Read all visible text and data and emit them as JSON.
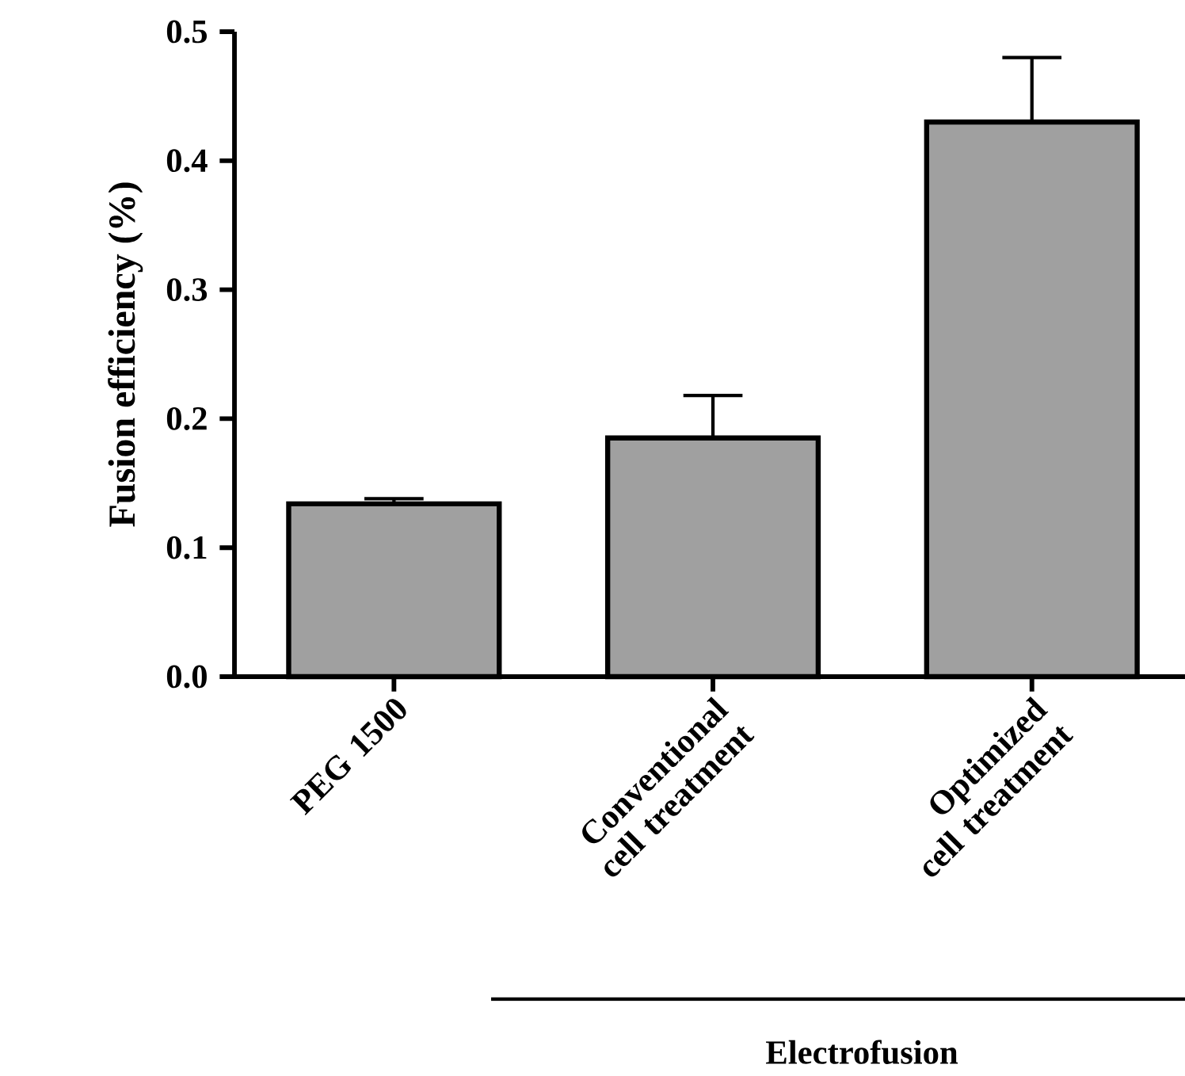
{
  "chart_data": {
    "type": "bar",
    "ylabel": "Fusion efficiency (%)",
    "categories": [
      "PEG 1500",
      "Conventional cell treatment",
      "Optimized cell treatment"
    ],
    "values": [
      0.134,
      0.185,
      0.43
    ],
    "errors": [
      [
        0.134,
        0.138
      ],
      [
        0.185,
        0.218
      ],
      [
        0.43,
        0.48
      ]
    ],
    "color": "#a0a0a0",
    "ylim": [
      0,
      0.5
    ],
    "yticks": [
      {
        "value": 0,
        "label": "0.0"
      },
      0.1,
      0.2,
      0.3,
      0.4,
      0.5
    ],
    "annotations": [
      "Electrofusion"
    ]
  }
}
